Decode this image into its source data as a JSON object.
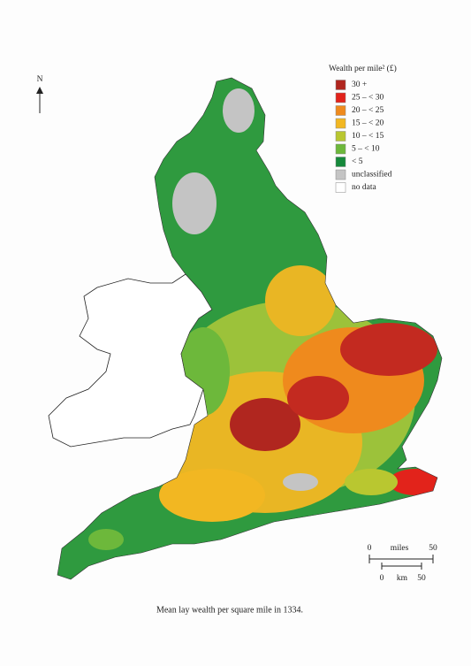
{
  "north": "N",
  "legend": {
    "title": "Wealth per mile² (£)",
    "items": [
      {
        "label": "30 +",
        "color": "#b0261f"
      },
      {
        "label": "25 – < 30",
        "color": "#e2231b"
      },
      {
        "label": "20 – < 25",
        "color": "#ef8a1d"
      },
      {
        "label": "15 – < 20",
        "color": "#f2b722"
      },
      {
        "label": "10 – < 15",
        "color": "#b9c730"
      },
      {
        "label": "5 – < 10",
        "color": "#6db83b"
      },
      {
        "label": "< 5",
        "color": "#16893b"
      },
      {
        "label": "unclassified",
        "color": "#c4c4c4"
      },
      {
        "label": "no data",
        "color": "#ffffff"
      }
    ]
  },
  "scale": {
    "miles": {
      "start": "0",
      "unit": "miles",
      "end": "50"
    },
    "km": {
      "start": "0",
      "unit": "km",
      "end": "50"
    }
  },
  "caption": "Mean lay wealth per square mile in 1334."
}
